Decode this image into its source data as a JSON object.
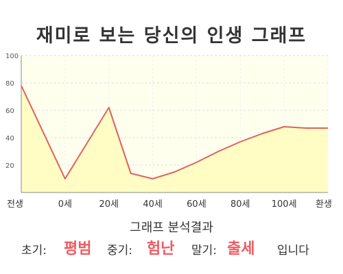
{
  "chart_data": {
    "type": "area",
    "title": "재미로 보는 당신의 인생 그래프",
    "categories": [
      "전생",
      "0세",
      "20세",
      "40세",
      "60세",
      "80세",
      "100세",
      "환생"
    ],
    "x": [
      -20,
      0,
      20,
      30,
      40,
      50,
      60,
      70,
      80,
      90,
      100,
      110,
      120
    ],
    "values": [
      78,
      10,
      62,
      14,
      10,
      15,
      22,
      30,
      37,
      43,
      48,
      47,
      47
    ],
    "ylim": [
      0,
      100
    ],
    "yticks": [
      20,
      40,
      60,
      80,
      100
    ],
    "xlabel": "",
    "ylabel": "",
    "grid": true,
    "line_color": "#e06060",
    "fill_color": "#fffcc4",
    "plot_bg": "#ffffee"
  },
  "result": {
    "heading": "그래프 분석결과",
    "early_label": "초기:",
    "early_value": "평범",
    "middle_label": "중기:",
    "middle_value": "험난",
    "late_label": "말기:",
    "late_value": "출세",
    "suffix": "입니다"
  }
}
